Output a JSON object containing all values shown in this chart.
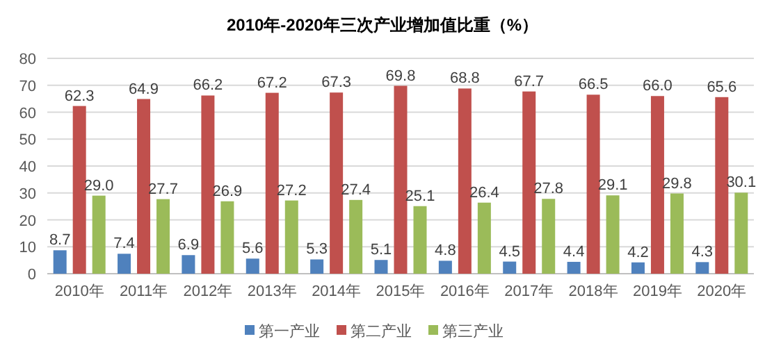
{
  "chart_data": {
    "type": "bar",
    "title": "2010年-2020年三次产业增加值比重（%）",
    "categories": [
      "2010年",
      "2011年",
      "2012年",
      "2013年",
      "2014年",
      "2015年",
      "2016年",
      "2017年",
      "2018年",
      "2019年",
      "2020年"
    ],
    "series": [
      {
        "name": "第一产业",
        "color": "#4f81bd",
        "values": [
          8.7,
          7.4,
          6.9,
          5.6,
          5.3,
          5.1,
          4.8,
          4.5,
          4.4,
          4.2,
          4.3
        ],
        "value_labels": [
          "8.7",
          "7.4",
          "6.9",
          "5.6",
          "5.3",
          "5.1",
          "4.8",
          "4.5",
          "4.4",
          "4.2",
          "4.3"
        ]
      },
      {
        "name": "第二产业",
        "color": "#c0504d",
        "values": [
          62.3,
          64.9,
          66.2,
          67.2,
          67.3,
          69.8,
          68.8,
          67.7,
          66.5,
          66.0,
          65.6
        ],
        "value_labels": [
          "62.3",
          "64.9",
          "66.2",
          "67.2",
          "67.3",
          "69.8",
          "68.8",
          "67.7",
          "66.5",
          "66.0",
          "65.6"
        ]
      },
      {
        "name": "第三产业",
        "color": "#9bbb59",
        "values": [
          29.0,
          27.7,
          26.9,
          27.2,
          27.4,
          25.1,
          26.4,
          27.8,
          29.1,
          29.8,
          30.1
        ],
        "value_labels": [
          "29.0",
          "27.7",
          "26.9",
          "27.2",
          "27.4",
          "25.1",
          "26.4",
          "27.8",
          "29.1",
          "29.8",
          "30.1"
        ]
      }
    ],
    "ylim": [
      0,
      80
    ],
    "yticks": [
      0,
      10,
      20,
      30,
      40,
      50,
      60,
      70,
      80
    ],
    "grid": "y",
    "legend": "bottom"
  }
}
